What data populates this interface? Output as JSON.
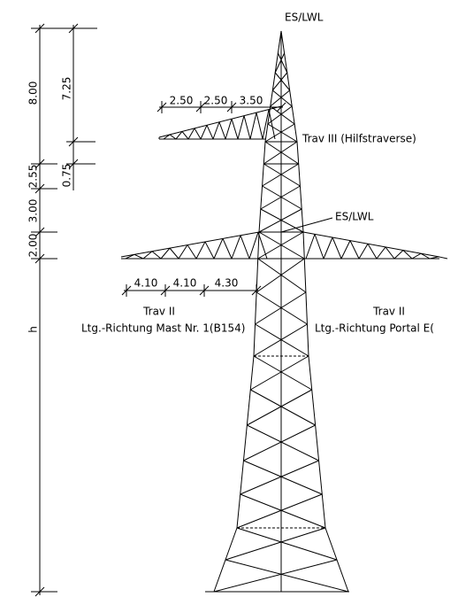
{
  "labels": {
    "top": "ES/LWL",
    "upper_arm": "Trav III (Hilfstraverse)",
    "earth_wire": "ES/LWL",
    "left_arm": "Trav II",
    "left_direction": "Ltg.-Richtung Mast Nr. 1(B154)",
    "right_arm": "Trav II",
    "right_direction": "Ltg.-Richtung Portal E("
  },
  "dimensions": {
    "outer": [
      "8.00",
      "2.55",
      "3.00",
      "2.00",
      "h"
    ],
    "inner": [
      "7.25",
      "0.75"
    ],
    "upper_arm": [
      "2.50",
      "2.50",
      "3.50"
    ],
    "lower_arm": [
      "4.10",
      "4.10",
      "4.30"
    ]
  }
}
